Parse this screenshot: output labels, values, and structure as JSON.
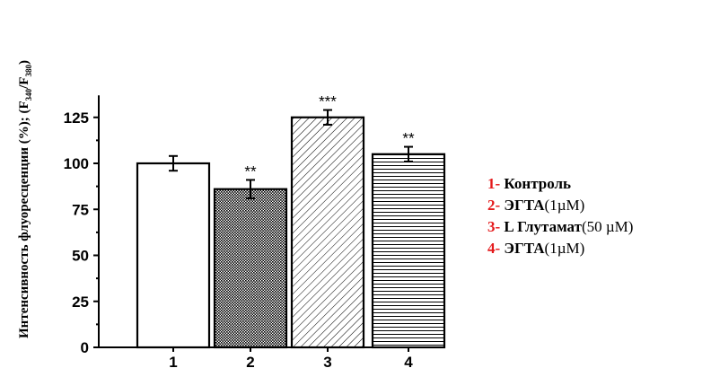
{
  "chart_data": {
    "type": "bar",
    "categories": [
      "1",
      "2",
      "3",
      "4"
    ],
    "values": [
      100,
      86,
      125,
      105
    ],
    "errors": [
      4,
      5,
      4,
      4
    ],
    "significance": [
      "",
      "**",
      "***",
      "**"
    ],
    "patterns": [
      "none",
      "dense-dots",
      "diagonal-hatch",
      "horizontal-lines"
    ],
    "ylabel": {
      "main": "Интенсивность флуоресценции (%); (F",
      "sub1": "340",
      "mid": "/F",
      "sub2": "380",
      "end": ")"
    },
    "xlabel": "",
    "ylim": [
      0,
      135
    ],
    "yticks": [
      0,
      25,
      50,
      75,
      100,
      125
    ],
    "legend_position": "right",
    "legend": [
      {
        "num": "1-",
        "name": "Контроль",
        "detail": ""
      },
      {
        "num": "2-",
        "name": "ЭГТА",
        "detail": "(1µM)"
      },
      {
        "num": "3-",
        "name": "L Глутамат",
        "detail": "(50 µM)"
      },
      {
        "num": "4-",
        "name": "ЭГТА",
        "detail": "(1µM)"
      }
    ],
    "colors": {
      "axis": "#000000",
      "bar_fill": "#ffffff",
      "legend_number": "#e41a1c"
    }
  }
}
